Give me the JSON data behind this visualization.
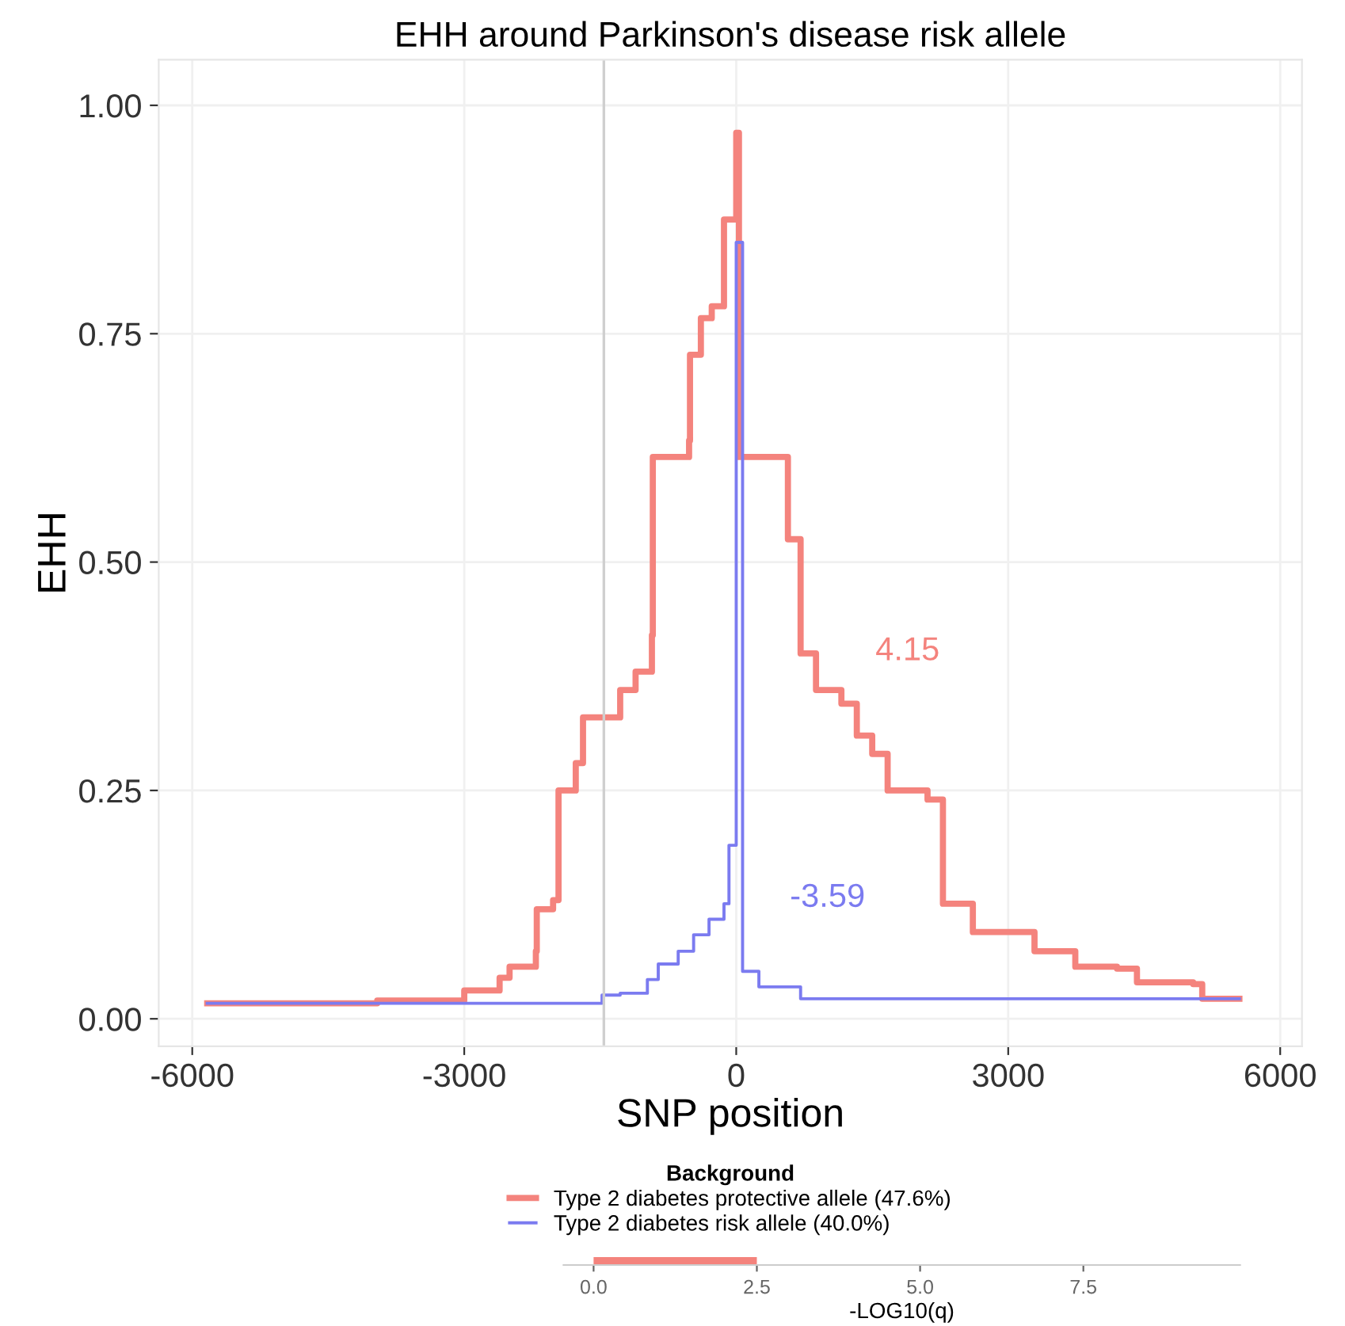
{
  "chart_data": [
    {
      "type": "step",
      "title": "EHH around Parkinson's disease risk allele",
      "xlabel": "SNP position",
      "ylabel": "EHH",
      "legend_title": "Background",
      "xlim": [
        -6370,
        6240
      ],
      "xticks": [
        -6000,
        -3000,
        0,
        3000,
        6000
      ],
      "ylim": [
        -0.03,
        1.05
      ],
      "yticks": [
        {
          "value": 0,
          "label": "0.00"
        },
        {
          "value": 0.25,
          "label": "0.25"
        },
        {
          "value": 0.5,
          "label": "0.50"
        },
        {
          "value": 0.75,
          "label": "0.75"
        },
        {
          "value": 1,
          "label": "1.00"
        }
      ],
      "grid": true,
      "legend": "bottom",
      "ref_lines": [
        {
          "axis": "x",
          "value": -1460,
          "color": "#cfcfcf"
        }
      ],
      "annotations": [
        "4.15",
        "-3.59"
      ],
      "series": [
        {
          "name": "Type 2 diabetes protective allele (47.6%)",
          "color": "#f4837d",
          "x": [
            -5835,
            -3960,
            -3000,
            -2610,
            -2500,
            -2210,
            -2200,
            -2020,
            -1960,
            -1770,
            -1690,
            -1370,
            -1280,
            -1110,
            -930,
            -920,
            -670,
            -520,
            -510,
            -390,
            -270,
            -135,
            0,
            30,
            400,
            570,
            710,
            880,
            1160,
            1330,
            1500,
            1670,
            2110,
            2280,
            2610,
            3290,
            3740,
            4200,
            4420,
            5040,
            5140,
            5550
          ],
          "values": [
            0.017,
            0.02,
            0.031,
            0.045,
            0.057,
            0.074,
            0.12,
            0.13,
            0.25,
            0.28,
            0.33,
            0.33,
            0.36,
            0.38,
            0.42,
            0.615,
            0.615,
            0.633,
            0.727,
            0.767,
            0.78,
            0.875,
            0.97,
            0.615,
            0.615,
            0.525,
            0.4,
            0.36,
            0.345,
            0.31,
            0.29,
            0.25,
            0.24,
            0.126,
            0.095,
            0.074,
            0.057,
            0.055,
            0.04,
            0.038,
            0.022,
            0.022
          ]
        },
        {
          "name": "Type 2 diabetes risk allele (40.0%)",
          "color": "#7b7bf0",
          "x": [
            -5835,
            -1480,
            -1280,
            -980,
            -860,
            -640,
            -470,
            -300,
            -135,
            -80,
            0,
            70,
            250,
            710,
            5550
          ],
          "values": [
            0.017,
            0.026,
            0.028,
            0.043,
            0.06,
            0.074,
            0.092,
            0.109,
            0.126,
            0.19,
            0.85,
            0.052,
            0.035,
            0.022,
            0.022
          ]
        }
      ]
    },
    {
      "type": "bar",
      "orientation": "horizontal",
      "xlabel": "-LOG10(q)",
      "categories": [
        null
      ],
      "values": [
        2.5
      ],
      "colors": [
        "#f4837d"
      ],
      "xlim": [
        -0.46,
        9.9
      ],
      "xticks": [
        {
          "value": 0,
          "label": "0.0"
        },
        {
          "value": 2.5,
          "label": "2.5"
        },
        {
          "value": 5,
          "label": "5.0"
        },
        {
          "value": 7.5,
          "label": "7.5"
        }
      ]
    }
  ]
}
